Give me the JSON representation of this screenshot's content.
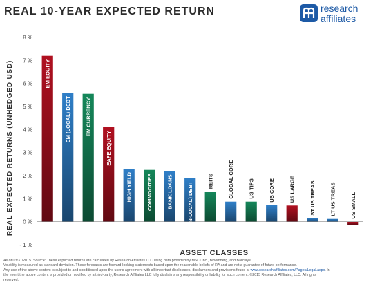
{
  "header": {
    "title": "REAL 10-YEAR EXPECTED RETURN"
  },
  "logo": {
    "line1": "research",
    "line2": "affiliates",
    "mark_color": "#1d5aa6"
  },
  "chart_data": {
    "type": "bar",
    "title": "REAL 10-YEAR EXPECTED RETURN",
    "xlabel": "ASSET CLASSES",
    "ylabel": "REAL EXPECTED RETURNS (UNHEDGED USD)",
    "ylim": [
      -1,
      8
    ],
    "yticks": [
      "8 %",
      "7 %",
      "6 %",
      "5 %",
      "4 %",
      "3 %",
      "2 %",
      "1 %",
      "0 %",
      "- 1 %"
    ],
    "ytick_values": [
      8,
      7,
      6,
      5,
      4,
      3,
      2,
      1,
      0,
      -1
    ],
    "grid": false,
    "categories": [
      "EM EQUITY",
      "EM (LOCAL) DEBT",
      "EM CURRENCY",
      "EAFE EQUITY",
      "HIGH YIELD",
      "COMMODITIES",
      "BANK LOANS",
      "EM (NON-LOCAL) DEBT",
      "REITS",
      "GLOBAL CORE",
      "US TIPS",
      "US CORE",
      "US LARGE",
      "ST US TREAS",
      "LT US TREAS",
      "US SMALL"
    ],
    "values": [
      7.2,
      5.6,
      5.55,
      4.1,
      2.3,
      2.25,
      2.2,
      1.9,
      1.3,
      0.87,
      0.87,
      0.72,
      0.7,
      0.15,
      0.12,
      -0.13
    ],
    "colors": [
      "#b01020",
      "#2f7fc8",
      "#15875a",
      "#b01020",
      "#2f7fc8",
      "#15875a",
      "#2f7fc8",
      "#2f7fc8",
      "#15875a",
      "#2f7fc8",
      "#15875a",
      "#2f7fc8",
      "#b01020",
      "#2f7fc8",
      "#2f7fc8",
      "#b01020"
    ]
  },
  "footnote": {
    "line1": "As of 03/31/2015. Source: These expected returns are calculated by Research Affiliates LLC using data provided by MSCI Inc., Bloomberg, and Barclays.",
    "line2": "Volatility is measured as standard deviation. These forecasts are forward-looking statements based upon the reasonable beliefs of RA and are not a guarantee of future performance.",
    "line3_pre": "Any use of the above content is subject to and conditioned upon the user's agreement with all important disclosures, disclaimers and provisions found at ",
    "link": "www.researchaffiliates.com/Pages/Legal.aspx",
    "line3_post": ". In",
    "line4": "the event the above content is provided or modified by a third-party, Research Affiliates LLC fully disclaims any responsibility or liability for such content. ©2015 Research Affiliates, LLC. All rights",
    "line5": "reserved."
  }
}
